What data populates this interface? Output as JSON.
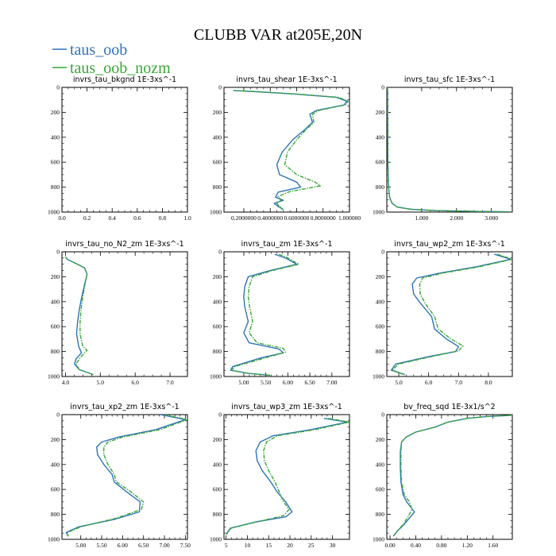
{
  "figure": {
    "title": "CLUBB VAR at205E,20N",
    "legend": [
      {
        "label": "taus_oob",
        "color": "#2d74b8"
      },
      {
        "label": "taus_oob_nozm",
        "color": "#3aa635"
      }
    ]
  },
  "chart_data": [
    {
      "type": "line",
      "title": "invrs_tau_bkgnd   1E-3xs^-1",
      "xlim": [
        0,
        1
      ],
      "ylim": [
        1000,
        0
      ],
      "xticks": [
        0,
        0.2,
        0.4,
        0.6,
        0.8,
        1.0
      ],
      "xtick_labels": [
        "0.0",
        "0.2",
        "0.4",
        "0.6",
        "0.8",
        "1.0"
      ],
      "yticks": [
        0,
        200,
        400,
        600,
        800,
        1000
      ],
      "ytick_labels": [
        "0",
        "200",
        "400",
        "600",
        "800",
        "1000"
      ],
      "series": [
        {
          "name": "taus_oob",
          "x": [],
          "y": []
        },
        {
          "name": "taus_oob_nozm",
          "x": [],
          "y": []
        }
      ]
    },
    {
      "type": "line",
      "title": "invrs_tau_shear   1E-3xs^-1",
      "xlim": [
        0.05,
        1.0
      ],
      "ylim": [
        1000,
        0
      ],
      "xticks": [
        0.2,
        0.4,
        0.6,
        0.8,
        1.0
      ],
      "xtick_labels": [
        "0.2000000",
        "0.4000000",
        "0.6000000",
        "0.8000000",
        "1.000000"
      ],
      "yticks": [
        0,
        200,
        400,
        600,
        800,
        1000
      ],
      "ytick_labels": [
        "0",
        "200",
        "400",
        "600",
        "800",
        "1000"
      ],
      "series": [
        {
          "name": "taus_oob",
          "x": [
            0.12,
            0.3,
            0.6,
            0.9,
            0.98,
            0.96,
            0.75,
            0.7,
            0.72,
            0.66,
            0.57,
            0.49,
            0.45,
            0.47,
            0.6,
            0.63,
            0.46,
            0.44,
            0.5,
            0.43,
            0.46,
            0.5
          ],
          "y": [
            25,
            35,
            55,
            80,
            110,
            140,
            185,
            215,
            280,
            340,
            420,
            520,
            620,
            700,
            760,
            800,
            840,
            880,
            905,
            930,
            955,
            980
          ]
        },
        {
          "name": "taus_oob_nozm",
          "x": [
            0.13,
            0.32,
            0.62,
            0.92,
            0.99,
            0.97,
            0.77,
            0.72,
            0.73,
            0.67,
            0.6,
            0.53,
            0.51,
            0.6,
            0.74,
            0.78,
            0.55,
            0.46,
            0.48,
            0.45,
            0.47,
            0.5
          ],
          "y": [
            25,
            35,
            55,
            80,
            110,
            140,
            185,
            215,
            280,
            340,
            420,
            520,
            620,
            700,
            760,
            790,
            835,
            875,
            905,
            930,
            955,
            980
          ]
        }
      ]
    },
    {
      "type": "line",
      "title": "invrs_tau_sfc   1E-3xs^-1",
      "xlim": [
        0,
        3.6
      ],
      "ylim": [
        1000,
        0
      ],
      "xticks": [
        1,
        2,
        3
      ],
      "xtick_labels": [
        "1.000",
        "2.000",
        "3.000"
      ],
      "yticks": [
        0,
        200,
        400,
        600,
        800,
        1000
      ],
      "ytick_labels": [
        "0",
        "200",
        "400",
        "600",
        "800",
        "1000"
      ],
      "series": [
        {
          "name": "taus_oob",
          "x": [
            0.02,
            0.025,
            0.03,
            0.05,
            0.08,
            0.15,
            0.3,
            0.7,
            1.4,
            2.5,
            3.5
          ],
          "y": [
            0,
            300,
            600,
            800,
            880,
            930,
            960,
            978,
            988,
            994,
            998
          ]
        },
        {
          "name": "taus_oob_nozm",
          "x": [
            0.02,
            0.025,
            0.03,
            0.05,
            0.08,
            0.15,
            0.3,
            0.7,
            1.4,
            2.5,
            3.5
          ],
          "y": [
            0,
            300,
            600,
            800,
            880,
            930,
            960,
            978,
            988,
            994,
            998
          ]
        }
      ]
    },
    {
      "type": "line",
      "title": "invrs_tau_no_N2_zm   1E-3xs^-1",
      "xlim": [
        3.9,
        7.5
      ],
      "ylim": [
        1000,
        0
      ],
      "xticks": [
        4,
        5,
        6,
        7
      ],
      "xtick_labels": [
        "4.0",
        "5.0",
        "6.0",
        "7.0"
      ],
      "yticks": [
        0,
        200,
        400,
        600,
        800,
        1000
      ],
      "ytick_labels": [
        "0",
        "200",
        "400",
        "600",
        "800",
        "1000"
      ],
      "series": [
        {
          "name": "taus_oob",
          "x": [
            4.0,
            4.05,
            4.2,
            4.35,
            4.55,
            4.62,
            4.55,
            4.47,
            4.4,
            4.35,
            4.32,
            4.38,
            4.46,
            4.3,
            4.26,
            4.4,
            4.8
          ],
          "y": [
            40,
            60,
            80,
            100,
            130,
            180,
            260,
            360,
            460,
            560,
            660,
            760,
            810,
            860,
            900,
            945,
            985
          ]
        },
        {
          "name": "taus_oob_nozm",
          "x": [
            4.0,
            4.05,
            4.2,
            4.35,
            4.55,
            4.62,
            4.56,
            4.5,
            4.45,
            4.42,
            4.42,
            4.5,
            4.62,
            4.42,
            4.3,
            4.4,
            4.8
          ],
          "y": [
            40,
            60,
            80,
            100,
            130,
            180,
            260,
            360,
            460,
            560,
            660,
            760,
            790,
            850,
            900,
            945,
            985
          ]
        }
      ]
    },
    {
      "type": "line",
      "title": "invrs_tau_zm   1E-3xs^-1",
      "xlim": [
        4.55,
        7.4
      ],
      "ylim": [
        1000,
        0
      ],
      "xticks": [
        5,
        5.5,
        6,
        6.5,
        7
      ],
      "xtick_labels": [
        "5.00",
        "5.50",
        "6.00",
        "6.50",
        "7.00"
      ],
      "yticks": [
        0,
        200,
        400,
        600,
        800,
        1000
      ],
      "ytick_labels": [
        "0",
        "200",
        "400",
        "600",
        "800",
        "1000"
      ],
      "series": [
        {
          "name": "taus_oob",
          "x": [
            5.7,
            5.95,
            6.2,
            5.6,
            5.1,
            5.02,
            5.0,
            5.02,
            5.1,
            5.0,
            5.12,
            5.8,
            5.9,
            5.4,
            4.75,
            4.7,
            5.1,
            5.6
          ],
          "y": [
            20,
            50,
            100,
            150,
            200,
            280,
            360,
            440,
            560,
            650,
            730,
            780,
            810,
            850,
            920,
            950,
            975,
            990
          ]
        },
        {
          "name": "taus_oob_nozm",
          "x": [
            5.8,
            6.0,
            6.25,
            5.65,
            5.2,
            5.12,
            5.1,
            5.13,
            5.2,
            5.12,
            5.3,
            5.9,
            5.95,
            5.5,
            4.8,
            4.72,
            5.1,
            5.6
          ],
          "y": [
            20,
            50,
            100,
            150,
            200,
            280,
            360,
            440,
            560,
            650,
            730,
            775,
            805,
            850,
            920,
            950,
            975,
            990
          ]
        }
      ]
    },
    {
      "type": "line",
      "title": "invrs_tau_wp2_zm   1E-3xs^-1",
      "xlim": [
        4.6,
        8.8
      ],
      "ylim": [
        1000,
        0
      ],
      "xticks": [
        5,
        6,
        7,
        8
      ],
      "xtick_labels": [
        "5.0",
        "6.0",
        "7.0",
        "8.0"
      ],
      "yticks": [
        0,
        200,
        400,
        600,
        800,
        1000
      ],
      "ytick_labels": [
        "0",
        "200",
        "400",
        "600",
        "800",
        "1000"
      ],
      "series": [
        {
          "name": "taus_oob",
          "x": [
            8.2,
            8.75,
            7.6,
            6.4,
            5.6,
            5.45,
            5.5,
            5.75,
            6.1,
            6.2,
            6.6,
            7.0,
            6.9,
            6.0,
            4.9,
            4.75,
            5.2
          ],
          "y": [
            20,
            60,
            120,
            170,
            210,
            260,
            340,
            420,
            520,
            620,
            700,
            760,
            800,
            840,
            900,
            950,
            985
          ]
        },
        {
          "name": "taus_oob_nozm",
          "x": [
            8.3,
            8.8,
            7.7,
            6.5,
            5.8,
            5.7,
            5.72,
            5.9,
            6.2,
            6.32,
            6.75,
            7.15,
            7.0,
            6.1,
            5.0,
            4.78,
            5.2
          ],
          "y": [
            20,
            60,
            120,
            170,
            210,
            260,
            340,
            420,
            520,
            620,
            700,
            755,
            795,
            840,
            900,
            950,
            985
          ]
        }
      ]
    },
    {
      "type": "line",
      "title": "invrs_tau_xp2_zm   1E-3xs^-1",
      "xlim": [
        4.55,
        7.55
      ],
      "ylim": [
        1000,
        0
      ],
      "xticks": [
        5,
        5.5,
        6,
        6.5,
        7,
        7.5
      ],
      "xtick_labels": [
        "5.00",
        "5.50",
        "6.00",
        "6.50",
        "7.00",
        "7.50"
      ],
      "yticks": [
        0,
        200,
        400,
        600,
        800,
        1000
      ],
      "ytick_labels": [
        "0",
        "200",
        "400",
        "600",
        "800",
        "1000"
      ],
      "series": [
        {
          "name": "taus_oob",
          "x": [
            6.9,
            7.5,
            6.8,
            5.9,
            5.5,
            5.38,
            5.4,
            5.55,
            5.75,
            5.8,
            6.1,
            6.42,
            6.4,
            5.8,
            4.95,
            4.65,
            4.7
          ],
          "y": [
            0,
            40,
            120,
            180,
            220,
            260,
            320,
            400,
            480,
            540,
            620,
            700,
            780,
            840,
            900,
            945,
            975
          ]
        },
        {
          "name": "taus_oob_nozm",
          "x": [
            7.0,
            7.55,
            6.9,
            6.0,
            5.65,
            5.55,
            5.55,
            5.65,
            5.8,
            5.85,
            6.2,
            6.5,
            6.45,
            5.85,
            5.0,
            4.68,
            4.7
          ],
          "y": [
            0,
            40,
            120,
            180,
            220,
            260,
            320,
            400,
            480,
            540,
            620,
            700,
            760,
            830,
            900,
            945,
            975
          ]
        }
      ]
    },
    {
      "type": "line",
      "title": "invrs_tau_wp3_zm   1E-3xs^-1",
      "xlim": [
        4.5,
        34
      ],
      "ylim": [
        1000,
        0
      ],
      "xticks": [
        5,
        10,
        15,
        20,
        25,
        30
      ],
      "xtick_labels": [
        "5",
        "10",
        "15",
        "20",
        "25",
        "30"
      ],
      "yticks": [
        0,
        200,
        400,
        600,
        800,
        1000
      ],
      "ytick_labels": [
        "0",
        "200",
        "400",
        "600",
        "800",
        "1000"
      ],
      "series": [
        {
          "name": "taus_oob",
          "x": [
            28,
            33.5,
            25,
            16,
            13,
            12,
            12.3,
            13.5,
            15.5,
            17,
            19,
            20.5,
            19,
            12,
            6,
            5
          ],
          "y": [
            30,
            60,
            120,
            170,
            220,
            290,
            370,
            450,
            540,
            620,
            700,
            780,
            820,
            860,
            910,
            960
          ]
        },
        {
          "name": "taus_oob_nozm",
          "x": [
            29,
            34,
            26,
            17,
            14.5,
            13.8,
            14,
            15,
            16.5,
            17.5,
            18.5,
            19.8,
            18.5,
            12.3,
            6.2,
            5.1
          ],
          "y": [
            30,
            60,
            120,
            170,
            220,
            290,
            370,
            450,
            540,
            620,
            700,
            760,
            810,
            860,
            910,
            960
          ]
        }
      ]
    },
    {
      "type": "line",
      "title": "bv_freq_sqd   1E-3x1/s^2",
      "xlim": [
        -0.05,
        1.9
      ],
      "ylim": [
        1000,
        0
      ],
      "xticks": [
        0,
        0.4,
        0.8,
        1.2,
        1.6
      ],
      "xtick_labels": [
        "0.00",
        "0.40",
        "0.80",
        "1.20",
        "1.60"
      ],
      "yticks": [
        0,
        200,
        400,
        600,
        800,
        1000
      ],
      "ytick_labels": [
        "0",
        "200",
        "400",
        "600",
        "800",
        "1000"
      ],
      "series": [
        {
          "name": "taus_oob",
          "x": [
            1.9,
            1.5,
            1.2,
            0.9,
            0.7,
            0.4,
            0.25,
            0.18,
            0.16,
            0.16,
            0.17,
            0.2,
            0.26,
            0.38,
            0.3,
            0.22,
            0.12,
            0.05
          ],
          "y": [
            5,
            15,
            30,
            60,
            100,
            140,
            180,
            220,
            300,
            420,
            540,
            640,
            700,
            780,
            830,
            880,
            930,
            975
          ]
        },
        {
          "name": "taus_oob_nozm",
          "x": [
            1.9,
            1.5,
            1.2,
            0.9,
            0.7,
            0.4,
            0.25,
            0.18,
            0.17,
            0.17,
            0.18,
            0.22,
            0.3,
            0.34,
            0.28,
            0.21,
            0.12,
            0.05
          ],
          "y": [
            5,
            15,
            30,
            60,
            100,
            140,
            180,
            220,
            300,
            420,
            540,
            640,
            700,
            760,
            820,
            875,
            930,
            975
          ]
        }
      ]
    }
  ]
}
